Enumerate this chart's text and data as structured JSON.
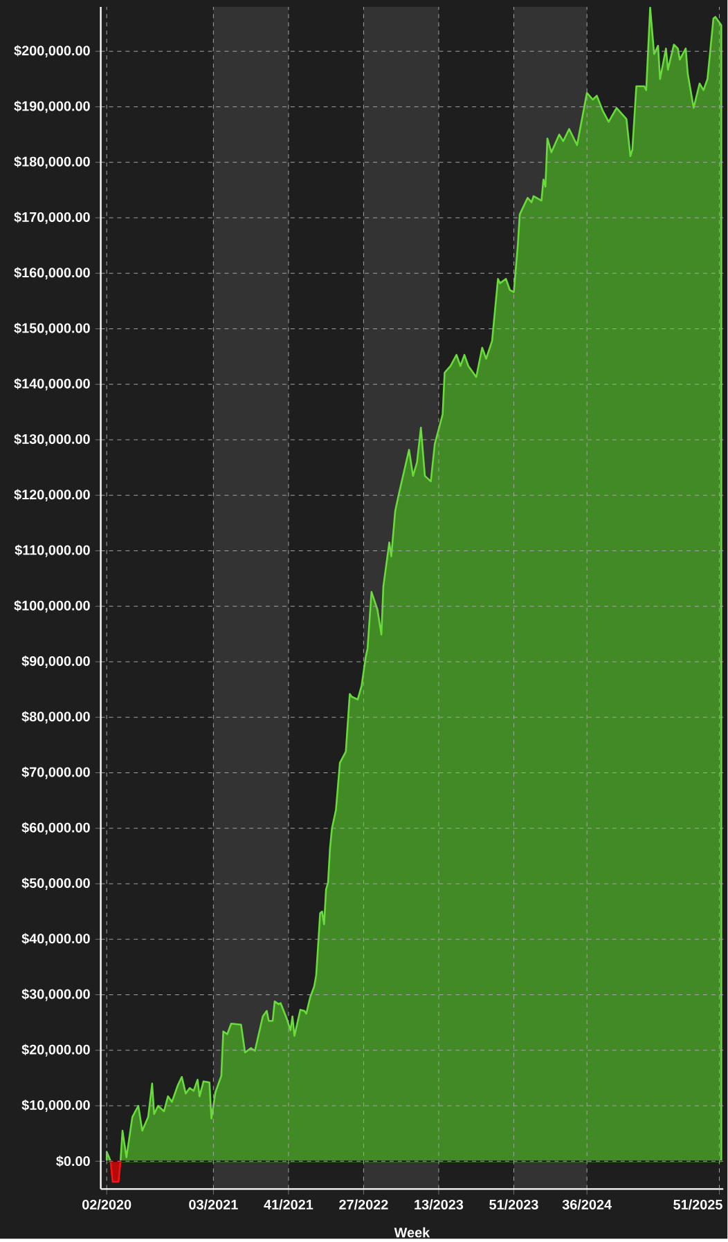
{
  "chart_data": {
    "type": "area",
    "xlabel": "Week",
    "xlim": [
      "2019-12-16",
      "2025-12-29"
    ],
    "xticks": [
      {
        "value": "2020-01-06",
        "label": "02/2020"
      },
      {
        "value": "2021-01-18",
        "label": "03/2021"
      },
      {
        "value": "2021-10-11",
        "label": "41/2021"
      },
      {
        "value": "2022-07-04",
        "label": "27/2022"
      },
      {
        "value": "2023-03-27",
        "label": "13/2023"
      },
      {
        "value": "2023-12-18",
        "label": "51/2023"
      },
      {
        "value": "2024-09-02",
        "label": "36/2024"
      },
      {
        "value": "2025-12-15",
        "label": "51/2025"
      }
    ],
    "ylim": [
      -5000,
      208000
    ],
    "yticks": [
      {
        "value": 0,
        "label": "$0.00"
      },
      {
        "value": 10000,
        "label": "$10,000.00"
      },
      {
        "value": 20000,
        "label": "$20,000.00"
      },
      {
        "value": 30000,
        "label": "$30,000.00"
      },
      {
        "value": 40000,
        "label": "$40,000.00"
      },
      {
        "value": 50000,
        "label": "$50,000.00"
      },
      {
        "value": 60000,
        "label": "$60,000.00"
      },
      {
        "value": 70000,
        "label": "$70,000.00"
      },
      {
        "value": 80000,
        "label": "$80,000.00"
      },
      {
        "value": 90000,
        "label": "$90,000.00"
      },
      {
        "value": 100000,
        "label": "$100,000.00"
      },
      {
        "value": 110000,
        "label": "$110,000.00"
      },
      {
        "value": 120000,
        "label": "$120,000.00"
      },
      {
        "value": 130000,
        "label": "$130,000.00"
      },
      {
        "value": 140000,
        "label": "$140,000.00"
      },
      {
        "value": 150000,
        "label": "$150,000.00"
      },
      {
        "value": 160000,
        "label": "$160,000.00"
      },
      {
        "value": 170000,
        "label": "$170,000.00"
      },
      {
        "value": 180000,
        "label": "$180,000.00"
      },
      {
        "value": 190000,
        "label": "$190,000.00"
      },
      {
        "value": 200000,
        "label": "$200,000.00"
      }
    ],
    "grid": true,
    "bands": [
      {
        "axis": "x",
        "from": "2021-01-18",
        "to": "2021-10-11",
        "color": "#333333"
      },
      {
        "axis": "x",
        "from": "2022-07-04",
        "to": "2023-03-27",
        "color": "#333333"
      },
      {
        "axis": "x",
        "from": "2023-12-18",
        "to": "2024-09-02",
        "color": "#333333"
      }
    ],
    "ref_lines": [
      {
        "axis": "y",
        "value": 0,
        "color": "#000000"
      }
    ],
    "series": [
      {
        "color": "#428a26",
        "x": [
          "2020-01-06",
          "2020-01-20",
          "2020-02-24",
          "2020-03-02",
          "2020-03-16",
          "2020-04-06",
          "2020-04-27",
          "2020-05-11",
          "2020-06-01",
          "2020-06-15",
          "2020-06-22",
          "2020-07-06",
          "2020-07-27",
          "2020-08-10",
          "2020-08-24",
          "2020-09-14",
          "2020-09-28",
          "2020-10-12",
          "2020-10-26",
          "2020-11-09",
          "2020-11-23",
          "2020-11-30",
          "2020-12-14",
          "2021-01-04",
          "2021-01-11",
          "2021-01-25",
          "2021-02-15",
          "2021-02-22",
          "2021-03-08",
          "2021-03-22",
          "2021-04-26",
          "2021-05-10",
          "2021-05-31",
          "2021-06-14",
          "2021-07-12",
          "2021-07-26",
          "2021-08-02",
          "2021-08-16",
          "2021-08-23",
          "2021-09-06",
          "2021-09-13",
          "2021-10-04",
          "2021-10-18",
          "2021-10-25",
          "2021-11-01",
          "2021-11-22",
          "2021-12-06",
          "2021-12-13",
          "2021-12-27",
          "2022-01-10",
          "2022-01-17",
          "2022-01-24",
          "2022-01-31",
          "2022-02-07",
          "2022-02-14",
          "2022-02-21",
          "2022-02-28",
          "2022-03-07",
          "2022-03-14",
          "2022-03-28",
          "2022-04-11",
          "2022-05-02",
          "2022-05-16",
          "2022-05-23",
          "2022-06-13",
          "2022-06-27",
          "2022-07-11",
          "2022-07-18",
          "2022-08-01",
          "2022-08-22",
          "2022-09-05",
          "2022-09-12",
          "2022-10-03",
          "2022-10-10",
          "2022-10-24",
          "2022-11-07",
          "2022-12-12",
          "2022-12-26",
          "2023-01-09",
          "2023-01-23",
          "2023-02-06",
          "2023-02-27",
          "2023-03-13",
          "2023-04-10",
          "2023-04-17",
          "2023-05-08",
          "2023-05-29",
          "2023-06-12",
          "2023-06-26",
          "2023-07-10",
          "2023-08-07",
          "2023-08-28",
          "2023-09-11",
          "2023-10-02",
          "2023-10-23",
          "2023-10-30",
          "2023-11-20",
          "2023-12-04",
          "2023-12-18",
          "2024-01-01",
          "2024-01-08",
          "2024-02-05",
          "2024-02-19",
          "2024-02-26",
          "2024-03-25",
          "2024-04-01",
          "2024-04-08",
          "2024-04-15",
          "2024-04-29",
          "2024-05-27",
          "2024-06-10",
          "2024-07-01",
          "2024-07-29",
          "2024-09-02",
          "2024-09-23",
          "2024-10-07",
          "2024-10-28",
          "2024-11-18",
          "2024-12-16",
          "2025-01-20",
          "2025-02-03",
          "2025-02-10",
          "2025-02-24",
          "2025-03-24",
          "2025-03-31",
          "2025-04-14",
          "2025-04-28",
          "2025-05-12",
          "2025-05-19",
          "2025-06-09",
          "2025-06-16",
          "2025-07-07",
          "2025-07-21",
          "2025-07-28",
          "2025-08-18",
          "2025-08-25",
          "2025-09-15",
          "2025-10-06",
          "2025-10-20",
          "2025-11-03",
          "2025-11-24",
          "2025-12-01",
          "2025-12-22"
        ],
        "values": [
          1700,
          0,
          0,
          5500,
          700,
          8000,
          10000,
          5500,
          8000,
          14000,
          8500,
          10000,
          9000,
          11700,
          10700,
          13700,
          15200,
          12200,
          13200,
          12700,
          14700,
          11700,
          14400,
          14200,
          7700,
          12400,
          15400,
          23400,
          22900,
          24800,
          24600,
          19600,
          20400,
          19900,
          26100,
          27100,
          25300,
          25300,
          28800,
          28300,
          28500,
          25800,
          23600,
          26100,
          22600,
          27300,
          27100,
          26600,
          29600,
          31500,
          33500,
          39000,
          44700,
          45000,
          42700,
          49000,
          50200,
          56400,
          60000,
          63300,
          71800,
          73800,
          84200,
          83700,
          83200,
          85700,
          90700,
          92400,
          102600,
          99400,
          94900,
          103600,
          111500,
          109000,
          117200,
          120500,
          128200,
          123500,
          125900,
          132200,
          123500,
          122500,
          129200,
          134600,
          142100,
          143300,
          145300,
          143300,
          145300,
          143300,
          141300,
          146600,
          144600,
          147800,
          159000,
          158200,
          159000,
          157000,
          156600,
          164900,
          170600,
          173600,
          172800,
          173900,
          173100,
          176900,
          175600,
          184300,
          181800,
          185000,
          183800,
          186000,
          183100,
          192500,
          191300,
          192000,
          189300,
          187300,
          189800,
          187800,
          181100,
          182300,
          193700,
          193700,
          193000,
          207900,
          199500,
          201000,
          195000,
          200500,
          196700,
          201200,
          200500,
          198500,
          200500,
          196000,
          189800,
          194200,
          193000,
          195000,
          205900,
          206200,
          204700
        ]
      },
      {
        "color": "#b40a0a",
        "x": [
          "2020-01-20",
          "2020-01-27",
          "2020-02-17",
          "2020-02-24"
        ],
        "values": [
          0,
          -3700,
          -3700,
          0
        ]
      }
    ]
  }
}
